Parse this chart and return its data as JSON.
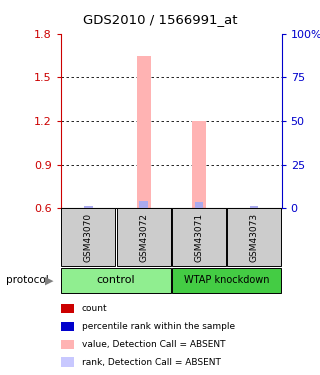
{
  "title": "GDS2010 / 1566991_at",
  "samples": [
    "GSM43070",
    "GSM43072",
    "GSM43071",
    "GSM43073"
  ],
  "ylim": [
    0.6,
    1.8
  ],
  "yticks_left": [
    0.6,
    0.9,
    1.2,
    1.5,
    1.8
  ],
  "yticks_right": [
    0,
    25,
    50,
    75,
    100
  ],
  "ylabel_left_color": "#cc0000",
  "ylabel_right_color": "#0000cc",
  "bar_values": [
    null,
    1.65,
    1.2,
    null
  ],
  "bar_bottom": 0.6,
  "bar_color": "#ffb3b3",
  "bar_width": 0.25,
  "rank_values": [
    0.615,
    0.648,
    0.642,
    0.615
  ],
  "rank_color": "#aaaaee",
  "rank_bar_width": 0.15,
  "sample_box_color": "#cccccc",
  "ctrl_color": "#90EE90",
  "wtap_color": "#44cc44",
  "legend_items": [
    {
      "color": "#cc0000",
      "label": "count"
    },
    {
      "color": "#0000cc",
      "label": "percentile rank within the sample"
    },
    {
      "color": "#ffb3b3",
      "label": "value, Detection Call = ABSENT"
    },
    {
      "color": "#c8c8ff",
      "label": "rank, Detection Call = ABSENT"
    }
  ],
  "figsize": [
    3.2,
    3.75
  ],
  "dpi": 100
}
